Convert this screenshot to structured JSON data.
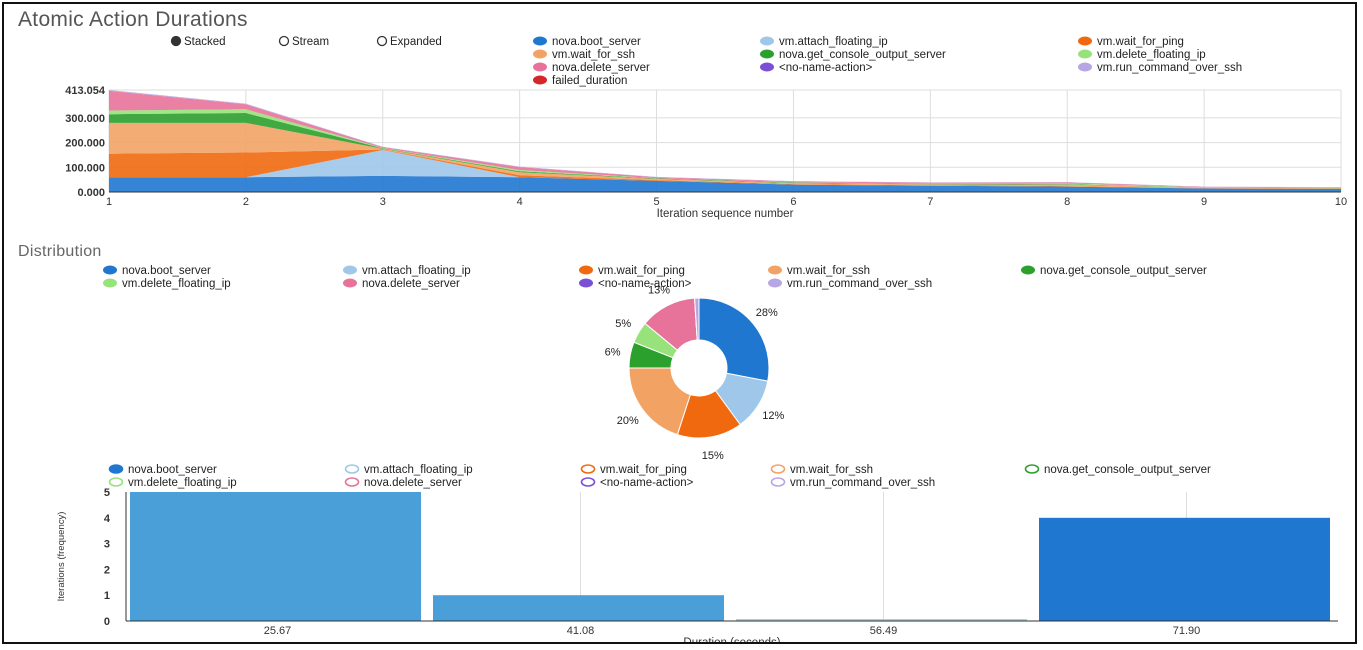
{
  "title": "Atomic Action Durations",
  "distribution_title": "Distribution",
  "modes": [
    {
      "label": "Stacked",
      "selected": true
    },
    {
      "label": "Stream",
      "selected": false
    },
    {
      "label": "Expanded",
      "selected": false
    }
  ],
  "actions": [
    {
      "name": "nova.boot_server",
      "color": "#1f77d0"
    },
    {
      "name": "vm.attach_floating_ip",
      "color": "#9ec7ea"
    },
    {
      "name": "vm.wait_for_ping",
      "color": "#f0690e"
    },
    {
      "name": "vm.wait_for_ssh",
      "color": "#f2a364"
    },
    {
      "name": "nova.get_console_output_server",
      "color": "#2ca02c"
    },
    {
      "name": "vm.delete_floating_ip",
      "color": "#98e27c"
    },
    {
      "name": "nova.delete_server",
      "color": "#e8739a"
    },
    {
      "name": "<no-name-action>",
      "color": "#7b4fd6"
    },
    {
      "name": "vm.run_command_over_ssh",
      "color": "#b7a6e4"
    },
    {
      "name": "failed_duration",
      "color": "#d62728"
    }
  ],
  "chart_data": [
    {
      "type": "area",
      "title": "Atomic Action Durations",
      "xlabel": "Iteration sequence number",
      "ylabel": "",
      "x": [
        1,
        2,
        3,
        4,
        5,
        6,
        7,
        8,
        9,
        10
      ],
      "x_tick_labels": [
        "1",
        "2",
        "3",
        "4",
        "5",
        "6",
        "7",
        "8",
        "9",
        "10"
      ],
      "y_tick_values": [
        0,
        100,
        200,
        300,
        413.054
      ],
      "y_tick_labels": [
        "0.000",
        "100.000",
        "200.000",
        "300.000",
        "413.054"
      ],
      "ylim": [
        0,
        413.054
      ],
      "stacked": true,
      "series": [
        {
          "name": "nova.boot_server",
          "values": [
            60,
            60,
            65,
            60,
            45,
            30,
            25,
            22,
            14,
            12
          ]
        },
        {
          "name": "vm.attach_floating_ip",
          "values": [
            0,
            0,
            105,
            0,
            0,
            0,
            0,
            0,
            0,
            0
          ]
        },
        {
          "name": "vm.wait_for_ping",
          "values": [
            95,
            100,
            2,
            8,
            3,
            2,
            2,
            2,
            1,
            1
          ]
        },
        {
          "name": "vm.wait_for_ssh",
          "values": [
            125,
            120,
            3,
            12,
            5,
            4,
            4,
            6,
            2,
            2
          ]
        },
        {
          "name": "nova.get_console_output_server",
          "values": [
            35,
            40,
            2,
            4,
            2,
            2,
            2,
            2,
            1,
            1
          ]
        },
        {
          "name": "vm.delete_floating_ip",
          "values": [
            15,
            15,
            1,
            5,
            1,
            1,
            1,
            3,
            1,
            1
          ]
        },
        {
          "name": "nova.delete_server",
          "values": [
            80,
            20,
            4,
            12,
            4,
            4,
            4,
            4,
            2,
            2
          ]
        },
        {
          "name": "<no-name-action>",
          "values": [
            0,
            0,
            0,
            0,
            0,
            0,
            0,
            0,
            0,
            0
          ]
        },
        {
          "name": "vm.run_command_over_ssh",
          "values": [
            3,
            3,
            1,
            2,
            1,
            1,
            1,
            1,
            1,
            1
          ]
        },
        {
          "name": "failed_duration",
          "values": [
            0,
            0,
            0,
            0,
            0,
            0,
            0,
            0,
            0,
            0
          ]
        }
      ]
    },
    {
      "type": "pie",
      "title": "Distribution",
      "donut": true,
      "slices": [
        {
          "name": "nova.boot_server",
          "value": 28,
          "label": "28%"
        },
        {
          "name": "vm.attach_floating_ip",
          "value": 12,
          "label": "12%"
        },
        {
          "name": "vm.wait_for_ping",
          "value": 15,
          "label": "15%"
        },
        {
          "name": "vm.wait_for_ssh",
          "value": 20,
          "label": "20%"
        },
        {
          "name": "nova.get_console_output_server",
          "value": 6,
          "label": "6%"
        },
        {
          "name": "vm.delete_floating_ip",
          "value": 5,
          "label": "5%"
        },
        {
          "name": "nova.delete_server",
          "value": 13,
          "label": "13%"
        },
        {
          "name": "<no-name-action>",
          "value": 0.01,
          "label": ""
        },
        {
          "name": "vm.run_command_over_ssh",
          "value": 1,
          "label": ""
        }
      ]
    },
    {
      "type": "bar",
      "title": "",
      "xlabel": "Duration (seconds)",
      "ylabel": "Iterations (frequency)",
      "categories": [
        "25.67",
        "41.08",
        "56.49",
        "71.90"
      ],
      "values": [
        5,
        1,
        0,
        4
      ],
      "bar_colors": [
        "#4a9fd8",
        "#4a9fd8",
        "#a9d3dc",
        "#1f77d0"
      ],
      "y_tick_labels": [
        "0",
        "1",
        "2",
        "3",
        "4",
        "5"
      ],
      "ylim": [
        0,
        5
      ]
    }
  ]
}
